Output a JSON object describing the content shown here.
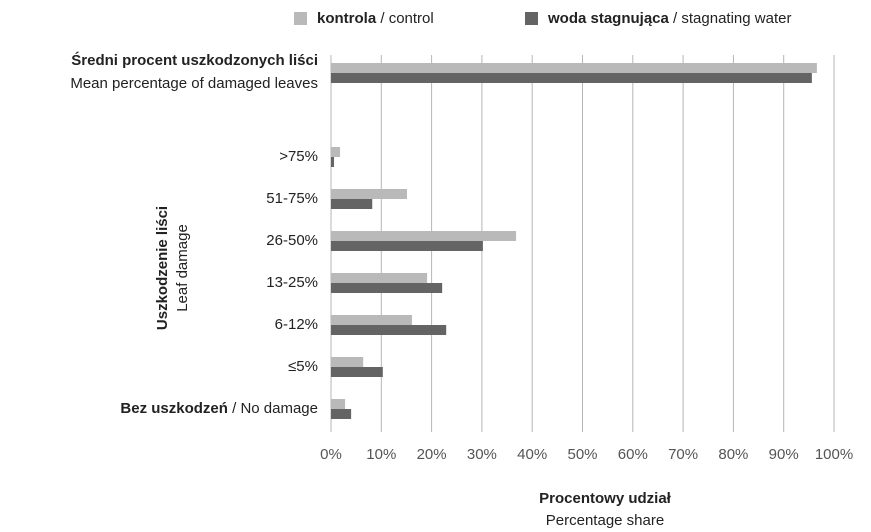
{
  "chart_data": {
    "type": "hbar",
    "categories": [
      {
        "bold": "Średni procent uszkodzonych liści",
        "line2": "Mean percentage of damaged leaves"
      },
      ">75%",
      "51-75%",
      "26-50%",
      "13-25%",
      "6-12%",
      "≤5%",
      {
        "bold": "Bez uszkodzeń",
        "text": " / No damage"
      }
    ],
    "series": [
      {
        "name": {
          "bold": "kontrola",
          "text": " / control"
        },
        "color": "#b9b9b9",
        "values": [
          96.6,
          1.8,
          15.1,
          36.8,
          19.1,
          16.1,
          6.4,
          2.8
        ]
      },
      {
        "name": {
          "bold": "woda stagnująca",
          "text": " / stagnating water"
        },
        "color": "#646464",
        "values": [
          95.6,
          0.6,
          8.2,
          30.2,
          22.1,
          22.9,
          10.3,
          4.0
        ]
      }
    ],
    "y_label": {
      "bold": "Uszkodzenie liści",
      "line2": "Leaf damage"
    },
    "x_label": {
      "bold": "Procentowy udział",
      "line2": "Percentage share"
    },
    "xlim": [
      0,
      100
    ],
    "xticks": [
      {
        "value": 0,
        "label": "0%"
      },
      {
        "value": 10,
        "label": "10%"
      },
      {
        "value": 20,
        "label": "20%"
      },
      {
        "value": 30,
        "label": "30%"
      },
      {
        "value": 40,
        "label": "40%"
      },
      {
        "value": 50,
        "label": "50%"
      },
      {
        "value": 60,
        "label": "60%"
      },
      {
        "value": 70,
        "label": "70%"
      },
      {
        "value": 80,
        "label": "80%"
      },
      {
        "value": 90,
        "label": "90%"
      },
      {
        "value": 100,
        "label": "100%"
      }
    ],
    "grid": true
  }
}
